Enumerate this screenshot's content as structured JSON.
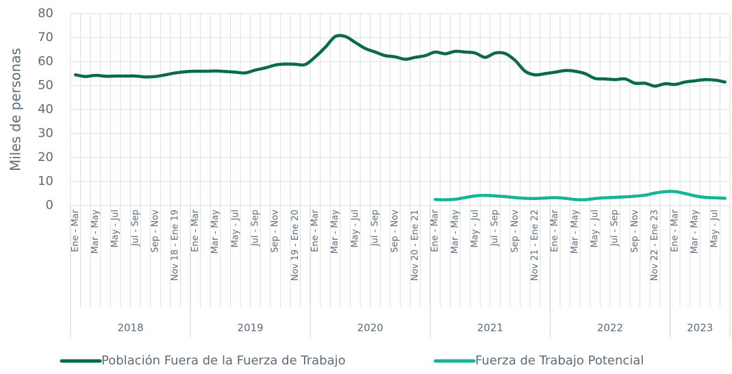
{
  "chart_data": {
    "type": "line",
    "y_axis_label": "Miles de personas",
    "categories": [
      "Ene - Mar",
      null,
      "Mar - May",
      null,
      "May - Jul",
      null,
      "Jul - Sep",
      null,
      "Sep - Nov",
      null,
      "Nov 18 - Ene 19",
      null,
      "Ene - Mar",
      null,
      "Mar - May",
      null,
      "May - Jul",
      null,
      "Jul - Sep",
      null,
      "Sep - Nov",
      null,
      "Nov 19 - Ene 20",
      null,
      "Ene - Mar",
      null,
      "Mar - May",
      null,
      "May - Jul",
      null,
      "Jul - Sep",
      null,
      "Sep - Nov",
      null,
      "Nov 20 - Ene 21",
      null,
      "Ene - Mar",
      null,
      "Mar - May",
      null,
      "May - Jul",
      null,
      "Jul - Sep",
      null,
      "Sep - Nov",
      null,
      "Nov 21 - Ene 22",
      null,
      "Ene - Mar",
      null,
      "Mar - May",
      null,
      "May - Jul",
      null,
      "Jul - Sep",
      null,
      "Sep - Nov",
      null,
      "Nov 22 - Ene 23",
      null,
      "Ene - Mar",
      null,
      "Mar - May",
      null,
      "May - Jul",
      null
    ],
    "years": [
      "2018",
      "2019",
      "2020",
      "2021",
      "2022",
      "2023"
    ],
    "series": [
      {
        "name": "Población Fuera de la Fuerza de Trabajo",
        "color": "#0b6a4e",
        "values": [
          54.5,
          53.8,
          54.3,
          53.9,
          54,
          54,
          54,
          53.6,
          53.8,
          54.5,
          55.3,
          55.8,
          56,
          56,
          56.1,
          55.9,
          55.6,
          55.3,
          56.5,
          57.4,
          58.6,
          59,
          58.9,
          58.8,
          62,
          66,
          70.5,
          70.5,
          68,
          65.5,
          64,
          62.5,
          62,
          61,
          61.8,
          62.5,
          64,
          63.3,
          64.3,
          64,
          63.6,
          61.8,
          63.6,
          63.4,
          60.5,
          56,
          54.5,
          55,
          55.6,
          56.3,
          56,
          55,
          53,
          52.8,
          52.5,
          52.8,
          51,
          51,
          49.8,
          50.8,
          50.5,
          51.5,
          52,
          52.5,
          52.3,
          51.5
        ]
      },
      {
        "name": "Fuerza de Trabajo Potencial",
        "color": "#16b394",
        "values": [
          null,
          null,
          null,
          null,
          null,
          null,
          null,
          null,
          null,
          null,
          null,
          null,
          null,
          null,
          null,
          null,
          null,
          null,
          null,
          null,
          null,
          null,
          null,
          null,
          null,
          null,
          null,
          null,
          null,
          null,
          null,
          null,
          null,
          null,
          null,
          null,
          2.5,
          2.4,
          2.6,
          3.3,
          4,
          4.2,
          4,
          3.7,
          3.3,
          3,
          2.9,
          3.1,
          3.3,
          3,
          2.5,
          2.4,
          2.9,
          3.2,
          3.4,
          3.6,
          3.9,
          4.3,
          5.2,
          5.8,
          5.8,
          5,
          4,
          3.4,
          3.2,
          3
        ]
      }
    ],
    "ylim": [
      0,
      80
    ],
    "yticks": [
      0,
      10,
      20,
      30,
      40,
      50,
      60,
      70,
      80
    ],
    "grid": true,
    "legend": "bottom"
  }
}
